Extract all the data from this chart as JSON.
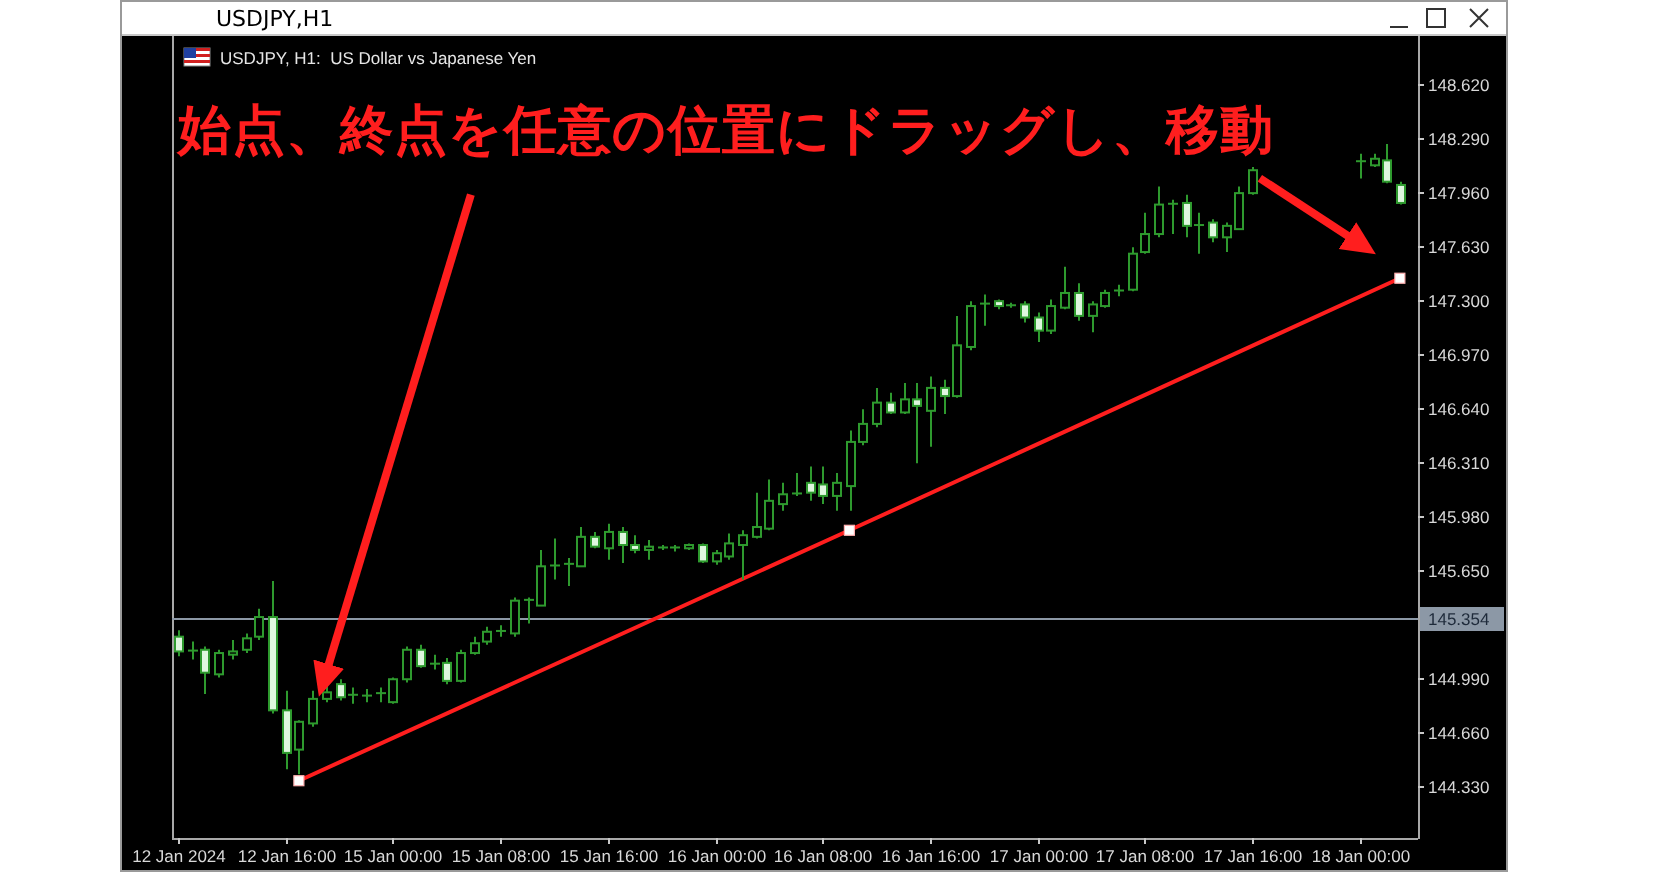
{
  "chart_data": {
    "type": "candlestick",
    "title": "USDJPY,H1",
    "subtitle": "USDJPY, H1:  US Dollar vs Japanese Yen",
    "annotations": [
      "始点、終点を任意の位置にドラッグし、移動"
    ],
    "categories": [
      "12 Jan 2024",
      null,
      null,
      null,
      null,
      null,
      null,
      null,
      "12 Jan 16:00",
      null,
      null,
      null,
      null,
      null,
      null,
      null,
      "15 Jan 00:00",
      null,
      null,
      null,
      null,
      null,
      null,
      null,
      "15 Jan 08:00",
      null,
      null,
      null,
      null,
      null,
      null,
      null,
      "15 Jan 16:00",
      null,
      null,
      null,
      null,
      null,
      null,
      null,
      "16 Jan 00:00",
      null,
      null,
      null,
      null,
      null,
      null,
      null,
      "16 Jan 08:00",
      null,
      null,
      null,
      null,
      null,
      null,
      null,
      "16 Jan 16:00",
      null,
      null,
      null,
      null,
      null,
      null,
      null,
      "17 Jan 00:00",
      null,
      null,
      null,
      null,
      null,
      null,
      null,
      "17 Jan 08:00",
      null,
      null,
      null,
      null,
      null,
      null,
      null,
      "17 Jan 16:00",
      null,
      null,
      null,
      null,
      null,
      null,
      null,
      "18 Jan 00:00",
      null,
      null,
      null
    ],
    "series": [
      {
        "color": "#2e9a2e",
        "ohlc": [
          [
            145.24,
            145.28,
            145.12,
            145.15
          ],
          [
            145.16,
            145.21,
            145.1,
            145.15
          ],
          [
            145.16,
            145.18,
            144.89,
            145.02
          ],
          [
            145.01,
            145.16,
            144.99,
            145.14
          ],
          [
            145.13,
            145.22,
            145.1,
            145.15
          ],
          [
            145.16,
            145.26,
            145.14,
            145.23
          ],
          [
            145.24,
            145.41,
            145.22,
            145.36
          ],
          [
            145.36,
            145.58,
            144.77,
            144.79
          ],
          [
            144.79,
            144.91,
            144.43,
            144.53
          ],
          [
            144.55,
            144.73,
            144.4,
            144.72
          ],
          [
            144.71,
            144.91,
            144.69,
            144.86
          ],
          [
            144.86,
            144.95,
            144.84,
            144.9
          ],
          [
            144.95,
            144.98,
            144.85,
            144.87
          ],
          [
            144.88,
            144.93,
            144.83,
            144.89
          ],
          [
            144.88,
            144.92,
            144.84,
            144.88
          ],
          [
            144.9,
            144.93,
            144.84,
            144.89
          ],
          [
            144.84,
            144.99,
            144.83,
            144.98
          ],
          [
            144.98,
            145.18,
            144.96,
            145.16
          ],
          [
            145.16,
            145.19,
            145.05,
            145.06
          ],
          [
            145.07,
            145.13,
            145.04,
            145.08
          ],
          [
            145.08,
            145.11,
            144.95,
            144.97
          ],
          [
            144.97,
            145.16,
            144.96,
            145.14
          ],
          [
            145.14,
            145.24,
            145.13,
            145.2
          ],
          [
            145.21,
            145.3,
            145.19,
            145.27
          ],
          [
            145.27,
            145.31,
            145.24,
            145.28
          ],
          [
            145.26,
            145.48,
            145.24,
            145.46
          ],
          [
            145.46,
            145.48,
            145.32,
            145.47
          ],
          [
            145.43,
            145.77,
            145.43,
            145.67
          ],
          [
            145.68,
            145.84,
            145.59,
            145.67
          ],
          [
            145.69,
            145.72,
            145.55,
            145.68
          ],
          [
            145.67,
            145.91,
            145.67,
            145.85
          ],
          [
            145.85,
            145.88,
            145.78,
            145.79
          ],
          [
            145.78,
            145.93,
            145.71,
            145.88
          ],
          [
            145.88,
            145.91,
            145.69,
            145.8
          ],
          [
            145.8,
            145.86,
            145.75,
            145.77
          ],
          [
            145.77,
            145.83,
            145.71,
            145.79
          ],
          [
            145.78,
            145.8,
            145.77,
            145.79
          ],
          [
            145.79,
            145.8,
            145.76,
            145.78
          ],
          [
            145.78,
            145.81,
            145.77,
            145.8
          ],
          [
            145.8,
            145.81,
            145.69,
            145.7
          ],
          [
            145.7,
            145.77,
            145.68,
            145.75
          ],
          [
            145.73,
            145.87,
            145.71,
            145.81
          ],
          [
            145.8,
            145.89,
            145.59,
            145.86
          ],
          [
            145.85,
            146.12,
            145.84,
            145.91
          ],
          [
            145.9,
            146.2,
            145.89,
            146.07
          ],
          [
            146.05,
            146.18,
            146.01,
            146.11
          ],
          [
            146.11,
            146.24,
            146.1,
            146.12
          ],
          [
            146.18,
            146.28,
            146.07,
            146.12
          ],
          [
            146.17,
            146.28,
            146.05,
            146.1
          ],
          [
            146.1,
            146.24,
            146.01,
            146.18
          ],
          [
            146.16,
            146.5,
            146.01,
            146.43
          ],
          [
            146.43,
            146.63,
            146.41,
            146.54
          ],
          [
            146.54,
            146.76,
            146.52,
            146.67
          ],
          [
            146.67,
            146.73,
            146.6,
            146.61
          ],
          [
            146.61,
            146.79,
            146.6,
            146.69
          ],
          [
            146.69,
            146.79,
            146.3,
            146.65
          ],
          [
            146.62,
            146.83,
            146.4,
            146.76
          ],
          [
            146.76,
            146.81,
            146.6,
            146.71
          ],
          [
            146.71,
            147.2,
            146.7,
            147.02
          ],
          [
            147.01,
            147.29,
            146.99,
            147.26
          ],
          [
            147.27,
            147.33,
            147.14,
            147.28
          ],
          [
            147.29,
            147.3,
            147.24,
            147.26
          ],
          [
            147.26,
            147.28,
            147.25,
            147.27
          ],
          [
            147.27,
            147.29,
            147.16,
            147.19
          ],
          [
            147.19,
            147.22,
            147.04,
            147.11
          ],
          [
            147.11,
            147.3,
            147.09,
            147.26
          ],
          [
            147.25,
            147.5,
            147.24,
            147.34
          ],
          [
            147.34,
            147.4,
            147.17,
            147.2
          ],
          [
            147.2,
            147.29,
            147.1,
            147.27
          ],
          [
            147.26,
            147.36,
            147.25,
            147.34
          ],
          [
            147.35,
            147.39,
            147.32,
            147.36
          ],
          [
            147.36,
            147.62,
            147.35,
            147.58
          ],
          [
            147.59,
            147.83,
            147.58,
            147.7
          ],
          [
            147.7,
            147.99,
            147.68,
            147.88
          ],
          [
            147.88,
            147.91,
            147.7,
            147.89
          ],
          [
            147.89,
            147.94,
            147.68,
            147.75
          ],
          [
            147.75,
            147.83,
            147.58,
            147.76
          ],
          [
            147.77,
            147.79,
            147.65,
            147.68
          ],
          [
            147.68,
            147.77,
            147.59,
            147.75
          ],
          [
            147.73,
            147.99,
            147.73,
            147.95
          ],
          [
            147.95,
            148.11,
            147.94,
            148.09
          ],
          null,
          null,
          null,
          null,
          null,
          null,
          null,
          [
            148.14,
            148.19,
            148.04,
            148.15
          ],
          [
            148.12,
            148.19,
            148.11,
            148.16
          ],
          [
            148.15,
            148.25,
            148.01,
            148.02
          ],
          [
            148.0,
            148.02,
            147.88,
            147.89
          ]
        ],
        "colors": [
          "#dff7df",
          "#2e9a2e",
          "#dff7df",
          "#000000",
          "#000000",
          "#000000",
          "#000000",
          "#dff7df",
          "#dff7df",
          "#000000",
          "#000000",
          "#000000",
          "#dff7df",
          "#2e9a2e",
          "#2e9a2e",
          "#2e9a2e",
          "#000000",
          "#000000",
          "#dff7df",
          "#2e9a2e",
          "#dff7df",
          "#000000",
          "#000000",
          "#000000",
          "#2e9a2e",
          "#000000",
          "#2e9a2e",
          "#000000",
          "#2e9a2e",
          "#2e9a2e",
          "#000000",
          "#dff7df",
          "#000000",
          "#dff7df",
          "#dff7df",
          "#000000",
          "#2e9a2e",
          "#2e9a2e",
          "#000000",
          "#dff7df",
          "#000000",
          "#000000",
          "#000000",
          "#000000",
          "#000000",
          "#000000",
          "#2e9a2e",
          "#dff7df",
          "#dff7df",
          "#000000",
          "#000000",
          "#000000",
          "#000000",
          "#dff7df",
          "#000000",
          "#dff7df",
          "#000000",
          "#dff7df",
          "#000000",
          "#000000",
          "#2e9a2e",
          "#dff7df",
          "#2e9a2e",
          "#dff7df",
          "#dff7df",
          "#000000",
          "#000000",
          "#dff7df",
          "#000000",
          "#000000",
          "#2e9a2e",
          "#000000",
          "#000000",
          "#000000",
          "#2e9a2e",
          "#dff7df",
          "#2e9a2e",
          "#dff7df",
          "#000000",
          "#000000",
          "#000000",
          null,
          null,
          null,
          null,
          null,
          null,
          null,
          "#2e9a2e",
          "#000000",
          "#dff7df",
          "#dff7df"
        ]
      },
      {
        "type": "line",
        "color": "#ff1e1e",
        "marker": "square",
        "values": [
          null,
          null,
          null,
          null,
          null,
          null,
          null,
          null,
          null,
          144.36,
          null,
          null,
          null,
          null,
          null,
          null,
          null,
          null,
          null,
          null,
          null,
          null,
          null,
          null,
          null,
          null,
          null,
          null,
          null,
          null,
          null,
          null,
          null,
          null,
          null,
          null,
          null,
          null,
          null,
          null,
          null,
          null,
          null,
          null,
          null,
          null,
          null,
          null,
          null,
          null,
          145.89,
          null,
          null,
          null,
          null,
          null,
          null,
          null,
          null,
          null,
          null,
          null,
          null,
          null,
          null,
          null,
          null,
          null,
          null,
          null,
          null,
          null,
          null,
          null,
          null,
          null,
          null,
          null,
          null,
          null,
          null,
          null,
          null,
          null,
          null,
          null,
          null,
          null,
          null,
          null,
          null,
          147.43
        ]
      }
    ],
    "ylim": [
      144.01,
      148.91
    ],
    "yticks": [
      {
        "value": 148.62,
        "label": "148.620"
      },
      {
        "value": 148.29,
        "label": "148.290"
      },
      {
        "value": 147.96,
        "label": "147.960"
      },
      {
        "value": 147.63,
        "label": "147.630"
      },
      {
        "value": 147.3,
        "label": "147.300"
      },
      {
        "value": 146.97,
        "label": "146.970"
      },
      {
        "value": 146.64,
        "label": "146.640"
      },
      {
        "value": 146.31,
        "label": "146.310"
      },
      {
        "value": 145.98,
        "label": "145.980"
      },
      {
        "value": 145.65,
        "label": "145.650"
      },
      {
        "value": 144.99,
        "label": "144.990"
      },
      {
        "value": 144.66,
        "label": "144.660"
      },
      {
        "value": 144.33,
        "label": "144.330"
      }
    ],
    "ref_lines": [
      {
        "axis": "y",
        "value": 145.354,
        "label": "145.354",
        "color": "#8c98a6"
      }
    ]
  }
}
